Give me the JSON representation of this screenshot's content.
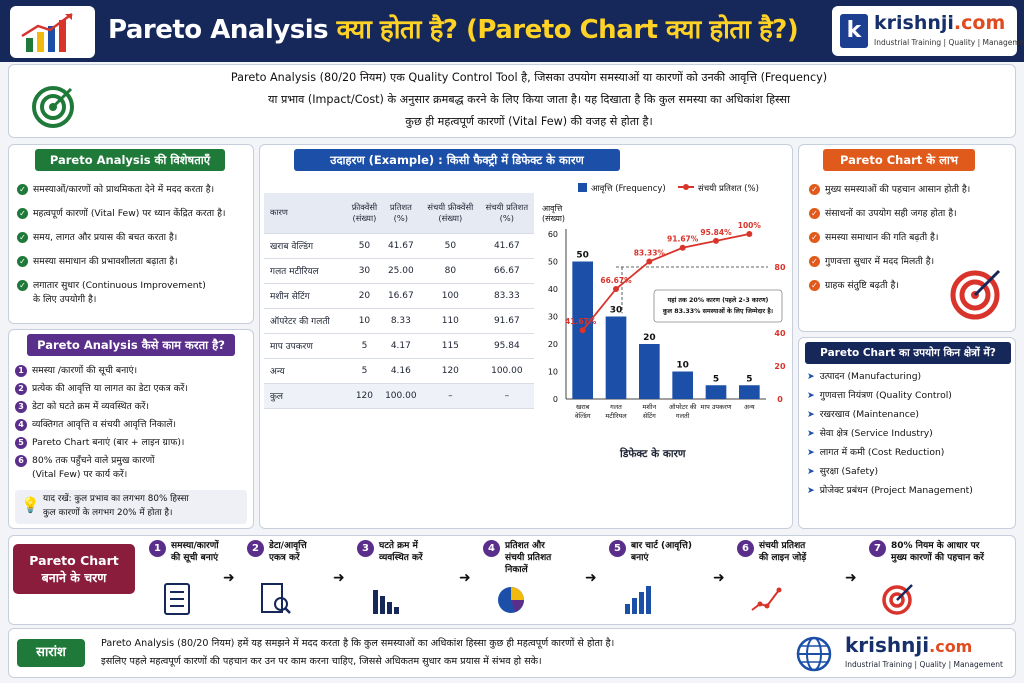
{
  "header": {
    "title_en": "Pareto Analysis ",
    "title_hi": "क्या होता है? (Pareto Chart क्या होता है?)",
    "brand_letter": "k",
    "brand_name": "krishnji",
    "brand_tld": ".com",
    "brand_tagline": "Industrial Training | Quality | Management"
  },
  "intro": {
    "line1": "Pareto Analysis (80/20 नियम) एक Quality Control Tool है, जिसका उपयोग समस्याओं या कारणों को उनकी आवृत्ति (Frequency)",
    "line2": "या प्रभाव (Impact/Cost) के अनुसार क्रमबद्ध करने के लिए किया जाता है। यह दिखाता है कि कुल समस्या का अधिकांश हिस्सा",
    "line3": "कुछ ही महत्वपूर्ण कारणों (Vital Few) की वजह से होता है।"
  },
  "features": {
    "title": "Pareto Analysis की विशेषताएँ",
    "items": [
      "समस्याओं/कारणों को प्राथमिकता देने में मदद करता है।",
      "महत्वपूर्ण कारणों (Vital Few) पर ध्यान केंद्रित करता है।",
      "समय, लागत और प्रयास की बचत करता है।",
      "समस्या समाधान की प्रभावशीलता बढ़ाता है।",
      "लगातार सुधार (Continuous Improvement)",
      "के लिए उपयोगी है।"
    ]
  },
  "how": {
    "title": "Pareto Analysis कैसे काम करता है?",
    "items": [
      "समस्या /कारणों की सूची बनाएं।",
      "प्रत्येक की आवृत्ति या लागत का डेटा एकत्र करें।",
      "डेटा को घटते क्रम में व्यवस्थित करें।",
      "व्यक्तिगत आवृत्ति व संचयी आवृत्ति निकालें।",
      "Pareto Chart बनाएं (बार + लाइन ग्राफ)।",
      "80% तक पहुँचने वाले प्रमुख कारणों",
      "(Vital Few) पर कार्य करें।"
    ],
    "note1": "याद रखें: कुल प्रभाव का लगभग 80% हिस्सा",
    "note2": "कुल कारणों के लगभग 20% में होता है।"
  },
  "example": {
    "title": "उदाहरण (Example) : किसी फैक्ट्री में डिफेक्ट के कारण",
    "headers": [
      "कारण",
      "फ्रीक्वेंसी\n(संख्या)",
      "प्रतिशत\n(%)",
      "संचयी फ्रीक्वेंसी\n(संख्या)",
      "संचयी प्रतिशत\n(%)"
    ],
    "rows": [
      [
        "खराब वेल्डिंग",
        "50",
        "41.67",
        "50",
        "41.67"
      ],
      [
        "गलत मटीरियल",
        "30",
        "25.00",
        "80",
        "66.67"
      ],
      [
        "मशीन सेटिंग",
        "20",
        "16.67",
        "100",
        "83.33"
      ],
      [
        "ऑपरेटर की गलती",
        "10",
        "8.33",
        "110",
        "91.67"
      ],
      [
        "माप उपकरण",
        "5",
        "4.17",
        "115",
        "95.84"
      ],
      [
        "अन्य",
        "5",
        "4.16",
        "120",
        "100.00"
      ],
      [
        "कुल",
        "120",
        "100.00",
        "–",
        "–"
      ]
    ]
  },
  "chart_data": {
    "type": "bar",
    "categories": [
      "खराब वेल्डिंग",
      "गलत मटीरियल",
      "मशीन सेटिंग",
      "ऑपरेटर की गलती",
      "माप उपकरण",
      "अन्य"
    ],
    "series": [
      {
        "name": "आवृत्ति (Frequency)",
        "type": "bar",
        "values": [
          50,
          30,
          20,
          10,
          5,
          5
        ],
        "color": "#1b4fa8"
      },
      {
        "name": "संचयी प्रतिशत (%)",
        "type": "line",
        "values": [
          41.67,
          66.67,
          83.33,
          91.67,
          95.84,
          100
        ],
        "color": "#d9342b"
      }
    ],
    "point_labels": [
      "41.67%",
      "66.67%",
      "83.33%",
      "91.67%",
      "95.84%",
      "100%"
    ],
    "ylabel": "आवृत्ति\n(संख्या)",
    "xlabel": "डिफेक्ट के कारण",
    "ylim": [
      0,
      60
    ],
    "yticks": [
      "0",
      "10",
      "20",
      "30",
      "40",
      "50",
      "60"
    ],
    "right_ticks": [
      "80",
      "40",
      "20",
      "0"
    ],
    "annotation": "यहां तक 20% कारण (पहले 2-3 कारण)\nकुल 83.33% समस्याओं के लिए जिम्मेदार है।",
    "legend": "top"
  },
  "benefits": {
    "title": "Pareto Chart के लाभ",
    "items": [
      "मुख्य समस्याओं की पहचान आसान होती है।",
      "संसाधनों का उपयोग सही जगह होता है।",
      "समस्या समाधान की गति बढ़ती है।",
      "गुणवत्ता सुधार में मदद मिलती है।",
      "ग्राहक संतुष्टि बढ़ती है।"
    ]
  },
  "areas": {
    "title": "Pareto Chart का उपयोग किन क्षेत्रों में?",
    "items": [
      "उत्पादन (Manufacturing)",
      "गुणवत्ता नियंत्रण (Quality Control)",
      "रखरखाव (Maintenance)",
      "सेवा क्षेत्र (Service Industry)",
      "लागत में कमी (Cost Reduction)",
      "सुरक्षा (Safety)",
      "प्रोजेक्ट प्रबंधन (Project Management)"
    ]
  },
  "steps": {
    "title": "Pareto Chart\nबनाने के चरण",
    "items": [
      {
        "n": "1",
        "label": "समस्या/कारणों\nकी सूची बनाएं"
      },
      {
        "n": "2",
        "label": "डेटा/आवृत्ति\nएकत्र करें"
      },
      {
        "n": "3",
        "label": "घटते क्रम में\nव्यवस्थित करें"
      },
      {
        "n": "4",
        "label": "प्रतिशत और\nसंचयी प्रतिशत\nनिकालें"
      },
      {
        "n": "5",
        "label": "बार चार्ट (आवृत्ति)\nबनाएं"
      },
      {
        "n": "6",
        "label": "संचयी प्रतिशत\nकी लाइन जोड़ें"
      },
      {
        "n": "7",
        "label": "80% नियम के आधार पर\nमुख्य कारणों की पहचान करें"
      }
    ]
  },
  "summary": {
    "label": "सारांश",
    "line1": "Pareto Analysis (80/20 नियम) हमें यह समझने में मदद करता है कि कुल समस्याओं का अधिकांश हिस्सा कुछ ही महत्वपूर्ण कारणों से होता है।",
    "line2": "इसलिए पहले महत्वपूर्ण कारणों की पहचान कर उन पर काम करना चाहिए, जिससे अधिकतम सुधार कम प्रयास में संभव हो सके।"
  },
  "colors": {
    "navy": "#16275a",
    "green": "#1f7a3a",
    "purple": "#5a2f8c",
    "orange": "#e05a1b",
    "maroon": "#8a1c3c",
    "blue": "#1b4fa8",
    "red": "#d9342b"
  }
}
